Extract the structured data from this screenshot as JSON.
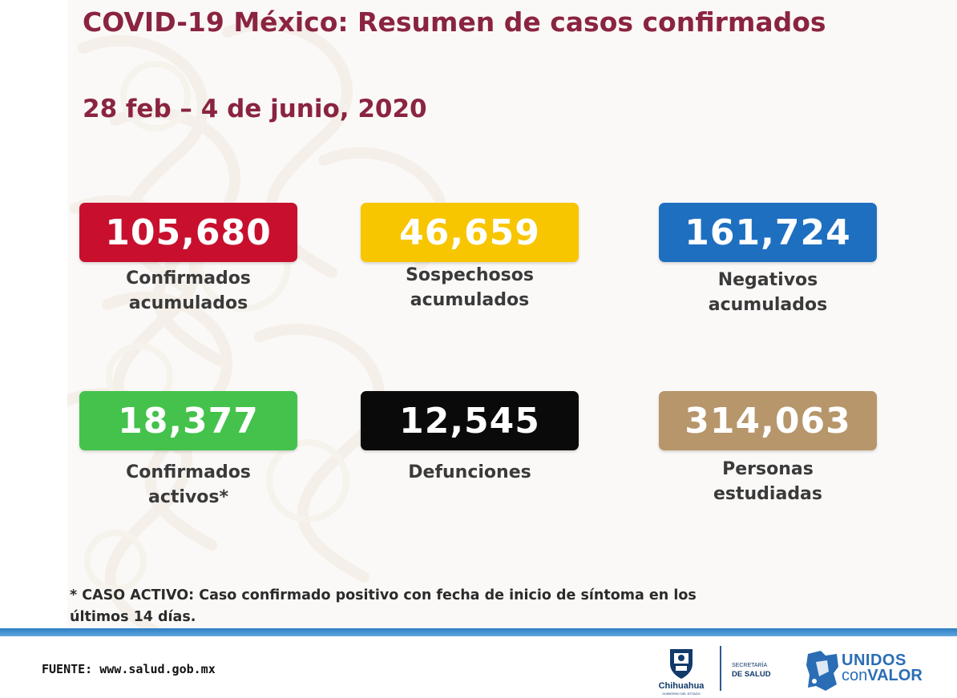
{
  "header": {
    "title": "COVID-19 México: Resumen de casos confirmados",
    "date_range": "28 feb – 4 de junio, 2020"
  },
  "stats": [
    {
      "value": "105,680",
      "label_line1": "Confirmados",
      "label_line2": "acumulados",
      "color": "#c8102e"
    },
    {
      "value": "46,659",
      "label_line1": "Sospechosos",
      "label_line2": "acumulados",
      "color": "#f7c600"
    },
    {
      "value": "161,724",
      "label_line1": "Negativos",
      "label_line2": "acumulados",
      "color": "#1f6fc1"
    },
    {
      "value": "18,377",
      "label_line1": "Confirmados",
      "label_line2": "activos*",
      "color": "#44c24c"
    },
    {
      "value": "12,545",
      "label_line1": "Defunciones",
      "label_line2": "",
      "color": "#0a0a0a"
    },
    {
      "value": "314,063",
      "label_line1": "Personas",
      "label_line2": "estudiadas",
      "color": "#b6966a"
    }
  ],
  "note": {
    "line1": "* CASO ACTIVO: Caso confirmado positivo con fecha de inicio de síntoma en los",
    "line2": "últimos 14 días."
  },
  "footer": {
    "source": "FUENTE: www.salud.gob.mx",
    "chihuahua": "Chihuahua",
    "chihuahua_sub": "GOBIERNO DEL ESTADO",
    "secretaria_1": "SECRETARÍA",
    "secretaria_2": "DE SALUD",
    "unidos_1": "UNIDOS",
    "unidos_2a": "con",
    "unidos_2b": "VALOR"
  }
}
